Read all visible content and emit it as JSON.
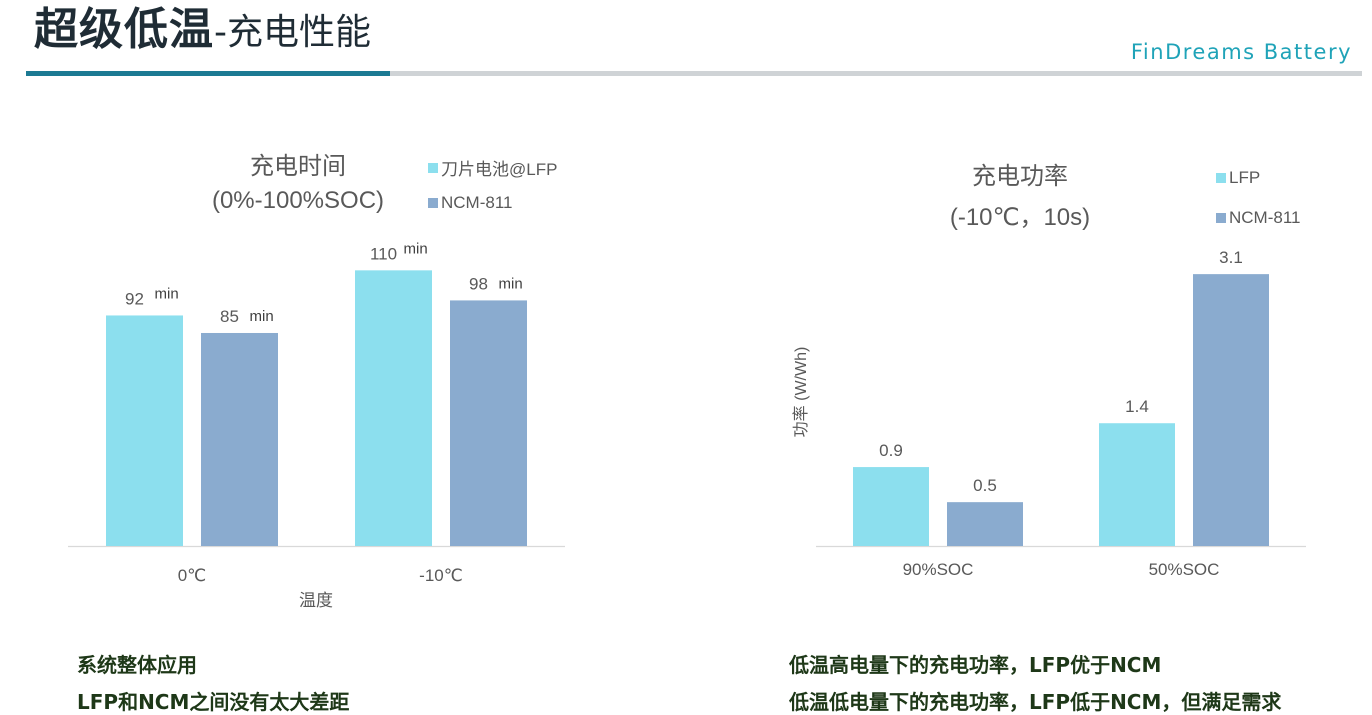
{
  "header": {
    "title_main": "超级低温",
    "title_sub": "-充电性能",
    "brand": "FinDreams  Battery"
  },
  "colors": {
    "lfp": "#8cdfee",
    "ncm": "#8aabcf",
    "teal": "#1c7a93",
    "text": "#595959"
  },
  "chart_data": [
    {
      "type": "bar",
      "title_lines": [
        "充电时间",
        "(0%-100%SOC)"
      ],
      "categories": [
        "0℃",
        "-10℃"
      ],
      "xlabel": "温度",
      "ylabel": "",
      "unit": "min",
      "ylim": [
        0,
        120
      ],
      "series": [
        {
          "name": "刀片电池@LFP",
          "values": [
            92,
            110
          ]
        },
        {
          "name": "NCM-811",
          "values": [
            85,
            98
          ]
        }
      ],
      "legend_position": "top-right",
      "grid": false
    },
    {
      "type": "bar",
      "title_lines": [
        "充电功率",
        "(-10℃，10s)"
      ],
      "categories": [
        "90%SOC",
        "50%SOC"
      ],
      "xlabel": "",
      "ylabel": "功率 (W/Wh)",
      "unit": "",
      "ylim": [
        0,
        3.3
      ],
      "series": [
        {
          "name": "LFP",
          "values": [
            0.9,
            1.4
          ]
        },
        {
          "name": "NCM-811",
          "values": [
            0.5,
            3.1
          ]
        }
      ],
      "legend_position": "top-right",
      "grid": false
    }
  ],
  "notes": {
    "left": [
      "系统整体应用",
      "LFP和NCM之间没有太大差距"
    ],
    "right": [
      "低温高电量下的充电功率，LFP优于NCM",
      "低温低电量下的充电功率，LFP低于NCM，但满足需求"
    ]
  }
}
